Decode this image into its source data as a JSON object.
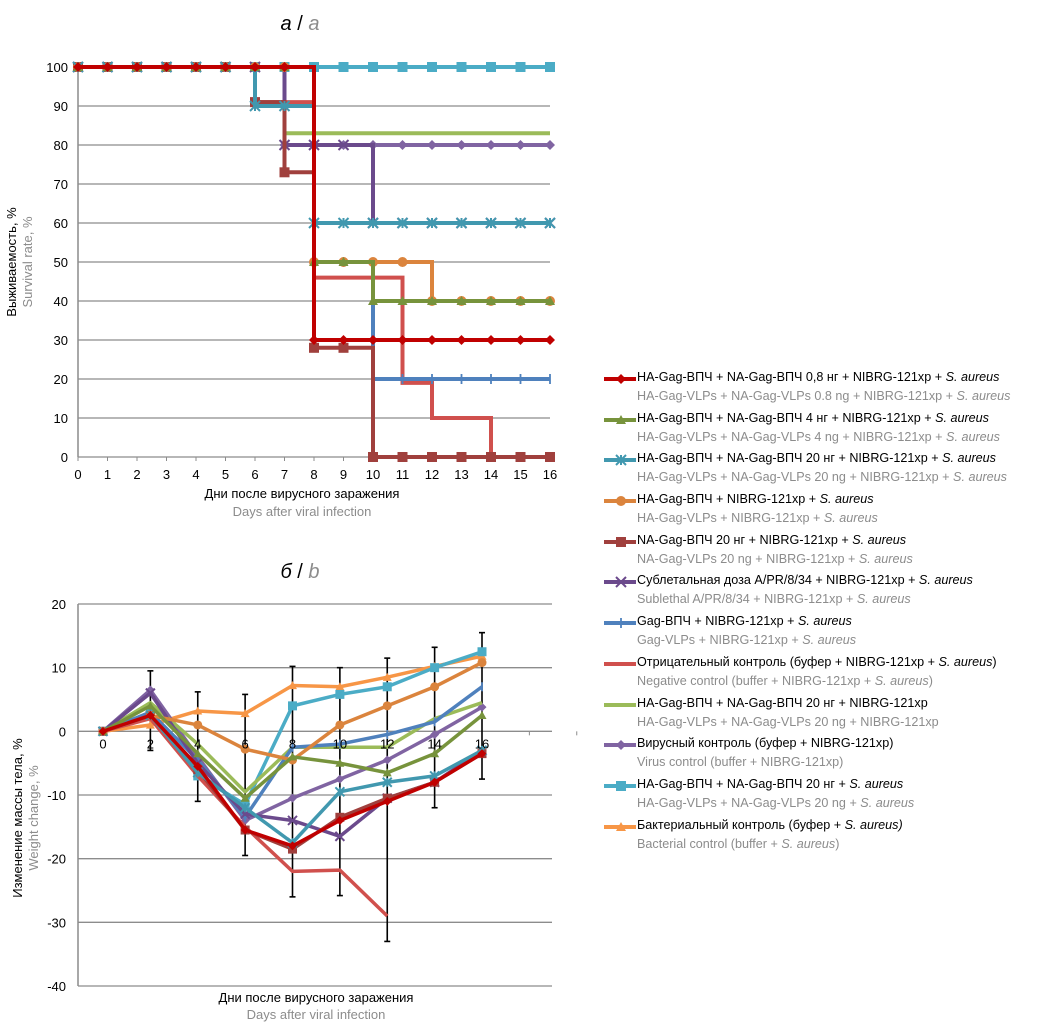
{
  "chart_data": [
    {
      "type": "line",
      "subtype": "step (Kaplan-Meier survival)",
      "title_ru": "а",
      "title_en": "a",
      "xlabel_ru": "Дни после вирусного заражения",
      "xlabel_en": "Days after viral infection",
      "ylabel_ru": "Выживаемость, %",
      "ylabel_en": "Survival rate, %",
      "xlim": [
        0,
        16
      ],
      "ylim": [
        0,
        100
      ],
      "xticks": [
        0,
        1,
        2,
        3,
        4,
        5,
        6,
        7,
        8,
        9,
        10,
        11,
        12,
        13,
        14,
        15,
        16
      ],
      "yticks": [
        0,
        10,
        20,
        30,
        40,
        50,
        60,
        70,
        80,
        90,
        100
      ],
      "grid": "horizontal",
      "x": [
        0,
        1,
        2,
        3,
        4,
        5,
        6,
        7,
        8,
        9,
        10,
        11,
        12,
        13,
        14,
        15,
        16
      ],
      "series": [
        {
          "id": "s1",
          "values": [
            100,
            100,
            100,
            100,
            100,
            100,
            100,
            100,
            30,
            30,
            30,
            30,
            30,
            30,
            30,
            30,
            30
          ]
        },
        {
          "id": "s2",
          "values": [
            100,
            100,
            100,
            100,
            100,
            100,
            100,
            100,
            50,
            50,
            40,
            40,
            40,
            40,
            40,
            40,
            40
          ]
        },
        {
          "id": "s3",
          "values": [
            100,
            100,
            100,
            100,
            100,
            100,
            90,
            90,
            60,
            60,
            60,
            60,
            60,
            60,
            60,
            60,
            60
          ]
        },
        {
          "id": "s4",
          "values": [
            100,
            100,
            100,
            100,
            100,
            100,
            100,
            100,
            50,
            50,
            50,
            50,
            40,
            40,
            40,
            40,
            40
          ]
        },
        {
          "id": "s5",
          "values": [
            100,
            100,
            100,
            100,
            100,
            100,
            91,
            73,
            28,
            28,
            0,
            0,
            0,
            0,
            0,
            0,
            0
          ]
        },
        {
          "id": "s6",
          "values": [
            100,
            100,
            100,
            100,
            100,
            100,
            100,
            80,
            80,
            80,
            60,
            60,
            60,
            60,
            60,
            60,
            60
          ]
        },
        {
          "id": "s7",
          "values": [
            100,
            100,
            100,
            100,
            100,
            100,
            100,
            100,
            50,
            50,
            20,
            20,
            20,
            20,
            20,
            20,
            20
          ]
        },
        {
          "id": "s8",
          "values": [
            100,
            100,
            100,
            100,
            100,
            100,
            91,
            91,
            46,
            46,
            46,
            19,
            10,
            10,
            0,
            0,
            0
          ]
        },
        {
          "id": "s9",
          "values": [
            100,
            100,
            100,
            100,
            100,
            100,
            100,
            83,
            83,
            83,
            83,
            83,
            83,
            83,
            83,
            83,
            83
          ]
        },
        {
          "id": "s10",
          "values": [
            100,
            100,
            100,
            100,
            100,
            100,
            100,
            80,
            80,
            80,
            80,
            80,
            80,
            80,
            80,
            80,
            80
          ]
        },
        {
          "id": "s11",
          "values": [
            100,
            100,
            100,
            100,
            100,
            100,
            100,
            100,
            100,
            100,
            100,
            100,
            100,
            100,
            100,
            100,
            100
          ]
        },
        {
          "id": "s12",
          "values": [
            100,
            100,
            100,
            100,
            100,
            100,
            100,
            100,
            100,
            100,
            100,
            100,
            100,
            100,
            100,
            100,
            100
          ]
        }
      ]
    },
    {
      "type": "line",
      "title_ru": "б",
      "title_en": "b",
      "xlabel_ru": "Дни после вирусного заражения",
      "xlabel_en": "Days after viral infection",
      "ylabel_ru": "Изменение массы тела, %",
      "ylabel_en": "Weight change, %",
      "xlim": [
        0,
        20
      ],
      "ylim": [
        -40,
        20
      ],
      "xticks": [
        0,
        2,
        4,
        6,
        8,
        10,
        12,
        14,
        16
      ],
      "yticks": [
        -40,
        -30,
        -20,
        -10,
        0,
        10,
        20
      ],
      "grid": "horizontal",
      "error_bars": true,
      "x": [
        0,
        2,
        4,
        6,
        8,
        10,
        12,
        14,
        16
      ],
      "series": [
        {
          "id": "s1",
          "values": [
            0,
            2.5,
            -5.5,
            -15.5,
            -18,
            -14,
            -11,
            -8,
            -3.5
          ]
        },
        {
          "id": "s2",
          "values": [
            0,
            4,
            -3.5,
            -10.5,
            -4,
            -5,
            -6.5,
            -3.5,
            2.5
          ]
        },
        {
          "id": "s3",
          "values": [
            0,
            2.5,
            -6.5,
            -12,
            -17.5,
            -9.5,
            -8,
            -7,
            -3
          ]
        },
        {
          "id": "s4",
          "values": [
            0,
            2.5,
            1,
            -2.8,
            -4.5,
            1,
            4,
            7,
            10.8
          ]
        },
        {
          "id": "s5",
          "values": [
            0,
            2.5,
            -6,
            -15.5,
            -18.5,
            -13.5,
            -10.5,
            -8,
            -3.5
          ]
        },
        {
          "id": "s6",
          "values": [
            0,
            6,
            -5,
            -13,
            -14,
            -16.5,
            -10.5,
            -8,
            -3
          ]
        },
        {
          "id": "s7",
          "values": [
            0,
            3,
            -4.5,
            -13.5,
            -2.5,
            -2,
            -0.5,
            1.5,
            7
          ]
        },
        {
          "id": "s8",
          "values": [
            0,
            2,
            -7,
            -15,
            -22,
            -21.8,
            -29,
            null,
            null
          ]
        },
        {
          "id": "s9",
          "values": [
            0,
            4.5,
            -2,
            -9.5,
            -2.5,
            -2.5,
            -2.5,
            2,
            4.5
          ]
        },
        {
          "id": "s10",
          "values": [
            0,
            6.5,
            -4,
            -14,
            -10.5,
            -7.5,
            -4.5,
            -0.5,
            3.8
          ]
        },
        {
          "id": "s11",
          "values": [
            0,
            3,
            -7,
            -11.5,
            4,
            5.8,
            7,
            10,
            12.5
          ]
        },
        {
          "id": "s12",
          "values": [
            0,
            1,
            3.2,
            2.8,
            7.2,
            7,
            8.5,
            10.2,
            11.8
          ]
        }
      ]
    }
  ],
  "legend": [
    {
      "id": "s1",
      "color": "#c00000",
      "marker": "diamond",
      "ru_main": "HA-Gag-ВПЧ + NA-Gag-ВПЧ 0,8 нг + NIBRG-121xp + ",
      "ru_italic": "S. aureus",
      "ru_tail": "",
      "en_main": "HA-Gag-VLPs + NA-Gag-VLPs 0.8 ng + NIBRG-121xp + ",
      "en_italic": "S. aureus",
      "en_tail": ""
    },
    {
      "id": "s2",
      "color": "#77933c",
      "marker": "triangle",
      "ru_main": "HA-Gag-ВПЧ + NA-Gag-ВПЧ 4 нг + NIBRG-121xp + ",
      "ru_italic": "S. aureus",
      "ru_tail": "",
      "en_main": "HA-Gag-VLPs + NA-Gag-VLPs 4 ng + NIBRG-121xp + ",
      "en_italic": "S. aureus",
      "en_tail": ""
    },
    {
      "id": "s3",
      "color": "#4198af",
      "marker": "star",
      "ru_main": "HA-Gag-ВПЧ + NA-Gag-ВПЧ 20 нг + NIBRG-121xp + ",
      "ru_italic": "S. aureus",
      "ru_tail": "",
      "en_main": "HA-Gag-VLPs + NA-Gag-VLPs 20 ng + NIBRG-121xp + ",
      "en_italic": "S. aureus",
      "en_tail": ""
    },
    {
      "id": "s4",
      "color": "#db843d",
      "marker": "circle",
      "ru_main": "HA-Gag-ВПЧ + NIBRG-121xp + ",
      "ru_italic": "S. aureus",
      "ru_tail": "",
      "en_main": "HA-Gag-VLPs + NIBRG-121xp + ",
      "en_italic": "S. aureus",
      "en_tail": ""
    },
    {
      "id": "s5",
      "color": "#a0403d",
      "marker": "square",
      "ru_main": "NA-Gag-ВПЧ 20 нг + NIBRG-121xp + ",
      "ru_italic": "S. aureus",
      "ru_tail": "",
      "en_main": "NA-Gag-VLPs 20 ng + NIBRG-121xp + ",
      "en_italic": "S. aureus",
      "en_tail": ""
    },
    {
      "id": "s6",
      "color": "#6b4a8c",
      "marker": "x",
      "ru_main": "Сублетальная доза A/PR/8/34 + NIBRG-121xp + ",
      "ru_italic": "S. aureus",
      "ru_tail": "",
      "en_main": "Sublethal A/PR/8/34 + NIBRG-121xp + ",
      "en_italic": "S. aureus",
      "en_tail": ""
    },
    {
      "id": "s7",
      "color": "#4f81bd",
      "marker": "plus",
      "ru_main": "Gag-ВПЧ + NIBRG-121xp + ",
      "ru_italic": "S. aureus",
      "ru_tail": "",
      "en_main": "Gag-VLPs + NIBRG-121xp + ",
      "en_italic": "S. aureus",
      "en_tail": ""
    },
    {
      "id": "s8",
      "color": "#d0504d",
      "marker": "none",
      "ru_main": "Отрицательный контроль (буфер + NIBRG-121xp + ",
      "ru_italic": "S. aureus",
      "ru_tail": ")",
      "en_main": "Negative control (buffer + NIBRG-121xp + ",
      "en_italic": "S. aureus",
      "en_tail": ")"
    },
    {
      "id": "s9",
      "color": "#9bbb59",
      "marker": "none",
      "ru_main": "HA-Gag-ВПЧ + NA-Gag-ВПЧ 20 нг + NIBRG-121xp",
      "ru_italic": "",
      "ru_tail": "",
      "en_main": "HA-Gag-VLPs + NA-Gag-VLPs 20 ng + NIBRG-121xp",
      "en_italic": "",
      "en_tail": ""
    },
    {
      "id": "s10",
      "color": "#8064a2",
      "marker": "diamond",
      "ru_main": "Вирусный контроль (буфер + NIBRG-121xp)",
      "ru_italic": "",
      "ru_tail": "",
      "en_main": "Virus control (buffer + NIBRG-121xp)",
      "en_italic": "",
      "en_tail": ""
    },
    {
      "id": "s11",
      "color": "#4bacc6",
      "marker": "square",
      "ru_main": "HA-Gag-ВПЧ + NA-Gag-ВПЧ 20 нг + ",
      "ru_italic": "S. aureus",
      "ru_tail": "",
      "en_main": "HA-Gag-VLPs + NA-Gag-VLPs 20 ng + ",
      "en_italic": "S. aureus",
      "en_tail": ""
    },
    {
      "id": "s12",
      "color": "#f79646",
      "marker": "triangle",
      "ru_main": "Бактериальный контроль (буфер + ",
      "ru_italic": "S. aureus)",
      "ru_tail": "",
      "en_main": "Bacterial control (buffer + ",
      "en_italic": "S. aureus",
      "en_tail": ")"
    }
  ]
}
